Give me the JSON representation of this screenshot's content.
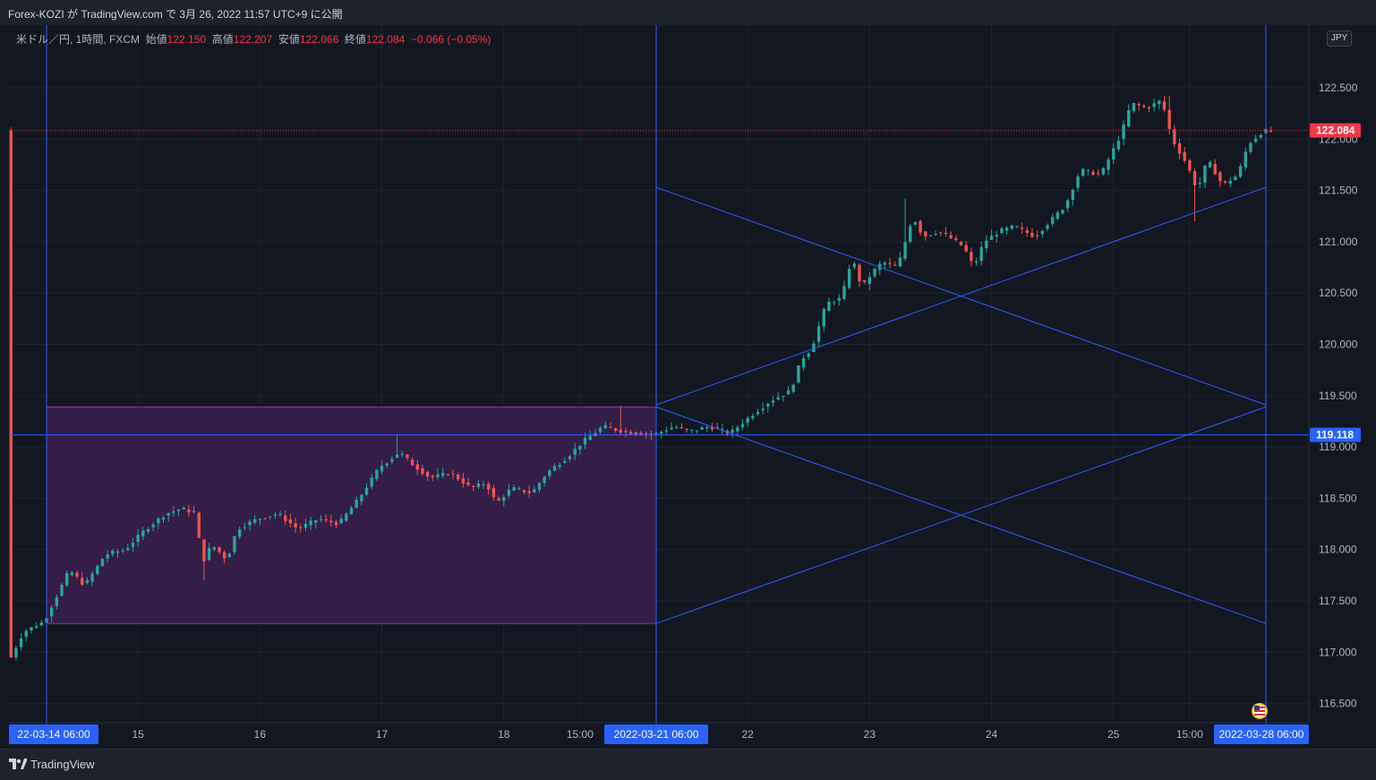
{
  "header": {
    "publish_line": "Forex-KOZI が TradingView.com で 3月 26, 2022 11:57 UTC+9 に公開"
  },
  "legend": {
    "symbol": "米ドル／円, 1時間, FXCM",
    "open_label": "始値",
    "open": "122.150",
    "high_label": "高値",
    "high": "122.207",
    "low_label": "安値",
    "low": "122.066",
    "close_label": "終値",
    "close": "122.084",
    "change": "−0.066 (−0.05%)"
  },
  "currency_badge": "JPY",
  "footer": {
    "brand": "TradingView"
  },
  "colors": {
    "background": "#131722",
    "up_candle": "#26a69a",
    "down_candle": "#ef5350",
    "drawing_blue": "#2962ff",
    "range_fill": "#3b1f4f",
    "range_border": "#9c27b0",
    "price_badge_red": "#f23645"
  },
  "chart_data": {
    "type": "candlestick",
    "symbol": "USDJPY",
    "interval": "1h",
    "y_axis": {
      "min": 116.3,
      "max": 122.9,
      "ticks": [
        "116.500",
        "117.000",
        "117.500",
        "118.000",
        "118.500",
        "119.000",
        "119.500",
        "120.000",
        "120.500",
        "121.000",
        "121.500",
        "122.000",
        "122.500"
      ]
    },
    "x_axis": {
      "ticks": [
        {
          "label": "22-03-14  06:00",
          "t": 0,
          "highlight": true
        },
        {
          "label": "15",
          "t": 18
        },
        {
          "label": "16",
          "t": 42
        },
        {
          "label": "17",
          "t": 66
        },
        {
          "label": "18",
          "t": 90
        },
        {
          "label": "15:00",
          "t": 105
        },
        {
          "label": "2022-03-21  06:00",
          "t": 120,
          "highlight": true
        },
        {
          "label": "22",
          "t": 138
        },
        {
          "label": "23",
          "t": 162
        },
        {
          "label": "24",
          "t": 186
        },
        {
          "label": "25",
          "t": 210
        },
        {
          "label": "15:00",
          "t": 225
        },
        {
          "label": "2022-03-28  06:00",
          "t": 240,
          "highlight": true
        }
      ]
    },
    "last_price": "122.084",
    "level_line": "119.118",
    "range_box": {
      "t_start": 0,
      "t_end": 120,
      "high": 119.39,
      "low": 117.28
    },
    "trend_lines": [
      {
        "t1": 120,
        "p1": 119.39,
        "t2": 240,
        "p2": 117.28
      },
      {
        "t1": 120,
        "p1": 117.28,
        "t2": 240,
        "p2": 119.39
      },
      {
        "t1": 120,
        "p1": 121.53,
        "t2": 240,
        "p2": 119.41
      },
      {
        "t1": 120,
        "p1": 119.41,
        "t2": 240,
        "p2": 121.53
      }
    ],
    "vertical_lines_t": [
      0,
      120,
      240
    ],
    "anchors": [
      [
        -7,
        116.9
      ],
      [
        -4,
        117.2
      ],
      [
        0,
        117.3
      ],
      [
        3,
        117.6
      ],
      [
        5,
        117.8
      ],
      [
        8,
        117.65
      ],
      [
        12,
        117.95
      ],
      [
        16,
        118.0
      ],
      [
        20,
        118.2
      ],
      [
        24,
        118.35
      ],
      [
        27,
        118.4
      ],
      [
        30,
        118.35
      ],
      [
        31,
        117.85
      ],
      [
        33,
        118.05
      ],
      [
        36,
        117.9
      ],
      [
        38,
        118.2
      ],
      [
        42,
        118.3
      ],
      [
        46,
        118.35
      ],
      [
        50,
        118.2
      ],
      [
        54,
        118.3
      ],
      [
        58,
        118.25
      ],
      [
        62,
        118.5
      ],
      [
        66,
        118.8
      ],
      [
        70,
        118.95
      ],
      [
        72,
        118.85
      ],
      [
        76,
        118.7
      ],
      [
        80,
        118.75
      ],
      [
        84,
        118.6
      ],
      [
        87,
        118.65
      ],
      [
        89,
        118.45
      ],
      [
        92,
        118.6
      ],
      [
        96,
        118.55
      ],
      [
        99,
        118.75
      ],
      [
        103,
        118.9
      ],
      [
        106,
        119.05
      ],
      [
        110,
        119.2
      ],
      [
        114,
        119.15
      ],
      [
        120,
        119.12
      ],
      [
        124,
        119.2
      ],
      [
        127,
        119.15
      ],
      [
        131,
        119.2
      ],
      [
        135,
        119.13
      ],
      [
        139,
        119.3
      ],
      [
        143,
        119.45
      ],
      [
        147,
        119.55
      ],
      [
        149,
        119.85
      ],
      [
        151,
        119.95
      ],
      [
        154,
        120.4
      ],
      [
        157,
        120.45
      ],
      [
        159,
        120.85
      ],
      [
        161,
        120.55
      ],
      [
        163,
        120.7
      ],
      [
        165,
        120.8
      ],
      [
        168,
        120.75
      ],
      [
        171,
        121.25
      ],
      [
        173,
        121.05
      ],
      [
        176,
        121.1
      ],
      [
        178,
        121.05
      ],
      [
        181,
        120.95
      ],
      [
        183,
        120.75
      ],
      [
        185,
        121.0
      ],
      [
        188,
        121.1
      ],
      [
        191,
        121.15
      ],
      [
        195,
        121.05
      ],
      [
        198,
        121.2
      ],
      [
        201,
        121.35
      ],
      [
        204,
        121.7
      ],
      [
        208,
        121.65
      ],
      [
        212,
        122.05
      ],
      [
        214,
        122.35
      ],
      [
        217,
        122.3
      ],
      [
        220,
        122.38
      ],
      [
        222,
        122.0
      ],
      [
        225,
        121.75
      ],
      [
        227,
        121.5
      ],
      [
        229,
        121.8
      ],
      [
        232,
        121.55
      ],
      [
        235,
        121.65
      ],
      [
        237,
        121.95
      ],
      [
        240,
        122.08
      ],
      [
        243,
        122.08
      ]
    ],
    "wicks_extremes": [
      {
        "t": 31,
        "low": 117.7
      },
      {
        "t": 69,
        "high": 119.12
      },
      {
        "t": 113,
        "high": 119.4
      },
      {
        "t": 169,
        "high": 121.42
      },
      {
        "t": 226,
        "low": 121.2
      },
      {
        "t": 221,
        "high": 122.42
      }
    ]
  }
}
